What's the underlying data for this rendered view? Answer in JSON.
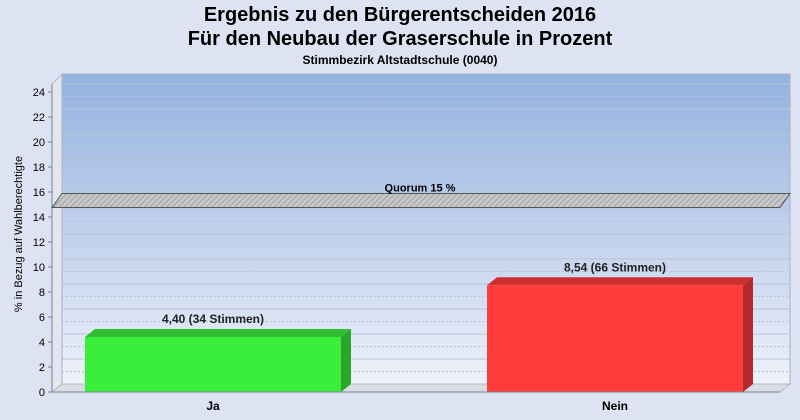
{
  "chart_data": {
    "type": "bar",
    "title": "Ergebnis zu den Bürgerentscheiden 2016",
    "subtitle": "Für den Neubau der Graserschule in Prozent",
    "subsubtitle": "Stimmbezirk Altstadtschule (0040)",
    "ylabel": "% in Bezug auf Wahlberechtigte",
    "xlabel": "",
    "ylim": [
      0,
      25
    ],
    "yticks": [
      0,
      2,
      4,
      6,
      8,
      10,
      12,
      14,
      16,
      18,
      20,
      22,
      24
    ],
    "ytick_labels": [
      "0",
      "2",
      "4",
      "6",
      "8",
      "10",
      "12",
      "14",
      "16",
      "18",
      "20",
      "22",
      "24"
    ],
    "categories": [
      "Ja",
      "Nein"
    ],
    "values": [
      4.4,
      8.54
    ],
    "data_labels": [
      "4,40 (34 Stimmen)",
      "8,54 (66 Stimmen)"
    ],
    "colors": [
      "#3cee3c",
      "#ff3c3c"
    ],
    "quorum": {
      "value": 15,
      "label": "Quorum 15 %"
    },
    "grid": true
  }
}
